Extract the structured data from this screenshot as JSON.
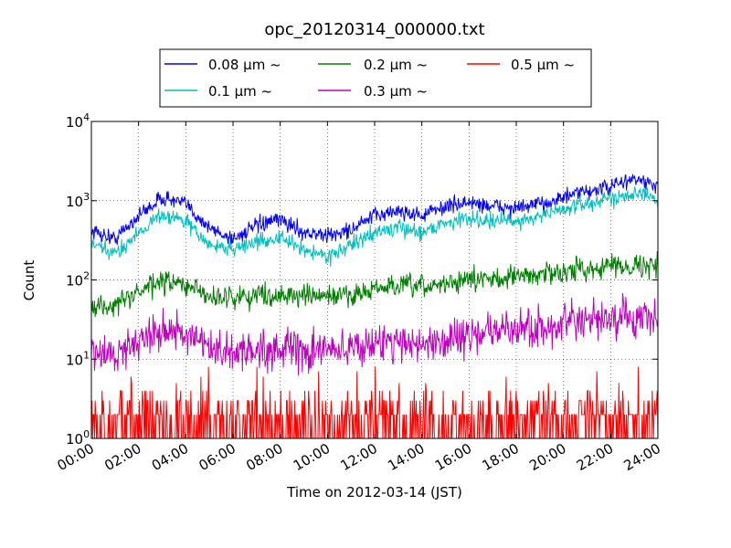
{
  "chart_data": {
    "type": "line",
    "title": "opc_20120314_000000.txt",
    "xlabel": "Time on 2012-03-14 (JST)",
    "ylabel": "Count",
    "yscale": "log",
    "ylim": [
      1,
      10000
    ],
    "xlim": [
      "00:00",
      "24:00"
    ],
    "grid": true,
    "legend_position": "top-center",
    "x_ticks": [
      "00:00",
      "02:00",
      "04:00",
      "06:00",
      "08:00",
      "10:00",
      "12:00",
      "14:00",
      "16:00",
      "18:00",
      "20:00",
      "22:00",
      "24:00"
    ],
    "y_ticks": [
      {
        "base": "10",
        "exp": "0"
      },
      {
        "base": "10",
        "exp": "1"
      },
      {
        "base": "10",
        "exp": "2"
      },
      {
        "base": "10",
        "exp": "3"
      },
      {
        "base": "10",
        "exp": "4"
      }
    ],
    "x_hours": [
      0,
      1,
      2,
      3,
      4,
      5,
      6,
      7,
      8,
      9,
      10,
      11,
      12,
      13,
      14,
      15,
      16,
      17,
      18,
      19,
      20,
      21,
      22,
      23,
      24
    ],
    "series": [
      {
        "name": "0.08 μm ~",
        "color": "#0000ff",
        "values": [
          420,
          330,
          650,
          1100,
          900,
          450,
          330,
          480,
          580,
          400,
          360,
          430,
          650,
          750,
          650,
          850,
          950,
          850,
          800,
          900,
          1100,
          1300,
          1500,
          1900,
          1500
        ]
      },
      {
        "name": "0.1 μm ~",
        "color": "#00bfbf",
        "values": [
          280,
          210,
          400,
          680,
          550,
          270,
          250,
          300,
          340,
          240,
          200,
          270,
          400,
          450,
          400,
          530,
          600,
          560,
          550,
          640,
          780,
          920,
          1050,
          1300,
          1000
        ]
      },
      {
        "name": "0.2 μm ~",
        "color": "#008000",
        "values": [
          45,
          48,
          70,
          95,
          85,
          62,
          60,
          65,
          65,
          62,
          62,
          65,
          75,
          85,
          80,
          90,
          100,
          105,
          110,
          118,
          128,
          140,
          150,
          155,
          150
        ]
      },
      {
        "name": "0.3 μm ~",
        "color": "#bf00bf",
        "values": [
          12,
          11,
          18,
          25,
          20,
          13,
          12,
          13,
          14,
          12,
          13,
          14,
          16,
          17,
          15,
          18,
          20,
          22,
          24,
          25,
          27,
          29,
          32,
          33,
          30
        ]
      },
      {
        "name": "0.5 μm ~",
        "color": "#ff0000",
        "values": [
          1.5,
          1.5,
          1.5,
          1.6,
          1.6,
          1.5,
          1.5,
          1.5,
          1.5,
          1.5,
          1.5,
          1.5,
          1.6,
          1.6,
          1.6,
          1.6,
          1.7,
          1.7,
          1.7,
          1.8,
          1.8,
          1.9,
          1.9,
          2.0,
          2.0
        ]
      }
    ]
  }
}
